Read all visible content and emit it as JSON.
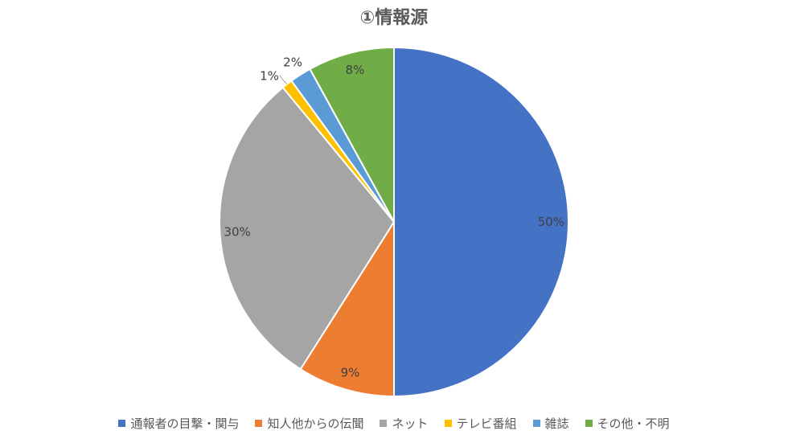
{
  "chart_data": {
    "type": "pie",
    "title": "①情報源",
    "categories": [
      "通報者の目撃・関与",
      "知人他からの伝聞",
      "ネット",
      "テレビ番組",
      "雑誌",
      "その他・不明"
    ],
    "values": [
      50,
      9,
      30,
      1,
      2,
      8
    ],
    "labels": [
      "50%",
      "9%",
      "30%",
      "1%",
      "2%",
      "8%"
    ],
    "colors": [
      "#4472C4",
      "#ED7D31",
      "#A5A5A5",
      "#FFC000",
      "#5B9BD5",
      "#70AD47"
    ],
    "legend_position": "bottom"
  }
}
